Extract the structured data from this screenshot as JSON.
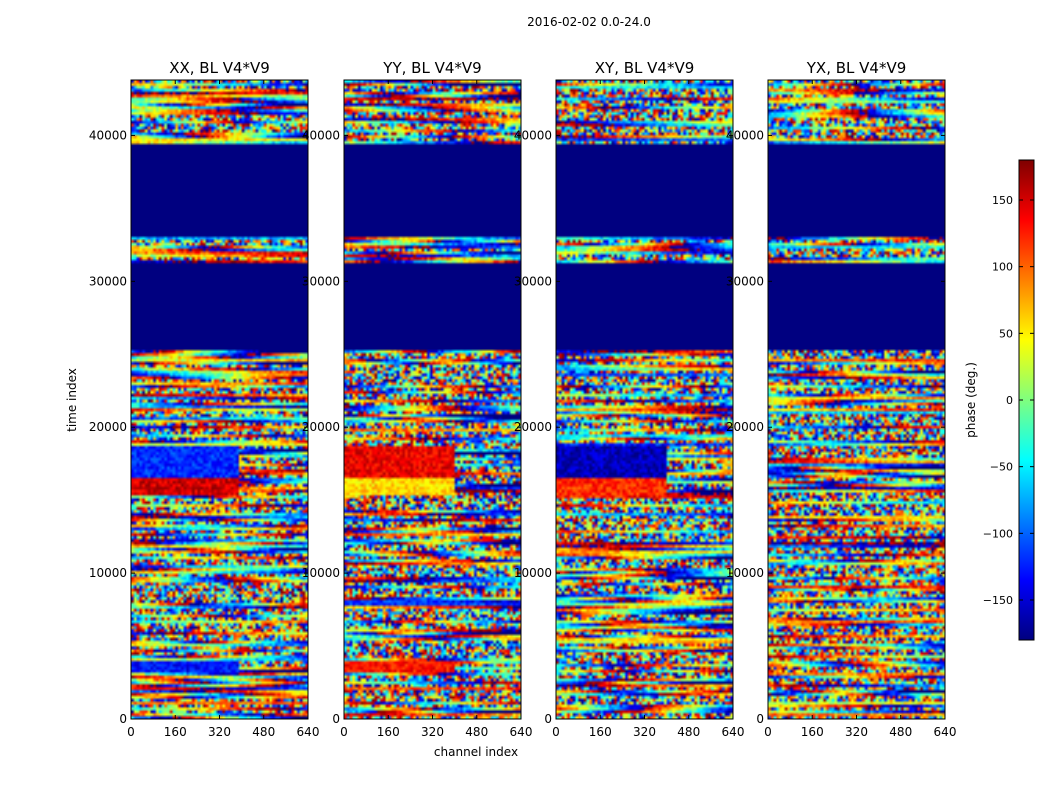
{
  "chart_data": {
    "type": "heatmap",
    "title": "2016-02-02 0.0-24.0",
    "xlabel": "channel index",
    "ylabel": "time index",
    "xlim": [
      0,
      640
    ],
    "ylim": [
      0,
      43800
    ],
    "x_ticks": [
      0,
      160,
      320,
      480,
      640
    ],
    "y_ticks": [
      0,
      10000,
      20000,
      30000,
      40000
    ],
    "x_tick_labels": [
      "0",
      "160",
      "320",
      "480",
      "640"
    ],
    "y_tick_labels": [
      "0",
      "10000",
      "20000",
      "30000",
      "40000"
    ],
    "colorbar": {
      "label": "phase (deg.)",
      "range": [
        -180,
        180
      ],
      "ticks": [
        -150,
        -100,
        -50,
        0,
        50,
        100,
        150
      ],
      "tick_labels": [
        "−150",
        "−100",
        "−50",
        "0",
        "50",
        "100",
        "150"
      ],
      "colormap": "jet"
    },
    "flagged_time_ranges": [
      [
        25200,
        31200
      ],
      [
        33000,
        39400
      ]
    ],
    "panels": [
      {
        "name": "panel-xx",
        "title": "XX, BL V4*V9",
        "seed": 11,
        "bands": [
          {
            "from": 15400,
            "to": 16600,
            "value": 150
          },
          {
            "from": 16600,
            "to": 18800,
            "value": -120
          },
          {
            "from": 3200,
            "to": 4000,
            "value": -130
          }
        ],
        "band_x_max": 390
      },
      {
        "name": "panel-yy",
        "title": "YY, BL V4*V9",
        "seed": 23,
        "bands": [
          {
            "from": 15400,
            "to": 16600,
            "value": 60
          },
          {
            "from": 16600,
            "to": 18800,
            "value": 140
          },
          {
            "from": 3200,
            "to": 4000,
            "value": 130
          }
        ],
        "band_x_max": 400
      },
      {
        "name": "panel-xy",
        "title": "XY, BL V4*V9",
        "seed": 37,
        "bands": [
          {
            "from": 15400,
            "to": 16600,
            "value": 120
          },
          {
            "from": 16600,
            "to": 18800,
            "value": -160
          }
        ],
        "band_x_max": 400
      },
      {
        "name": "panel-yx",
        "title": "YX, BL V4*V9",
        "seed": 53,
        "bands": [],
        "band_x_max": 400
      }
    ]
  },
  "colors": {
    "flagged": "#00007f",
    "axis": "#000000",
    "background": "#ffffff"
  }
}
